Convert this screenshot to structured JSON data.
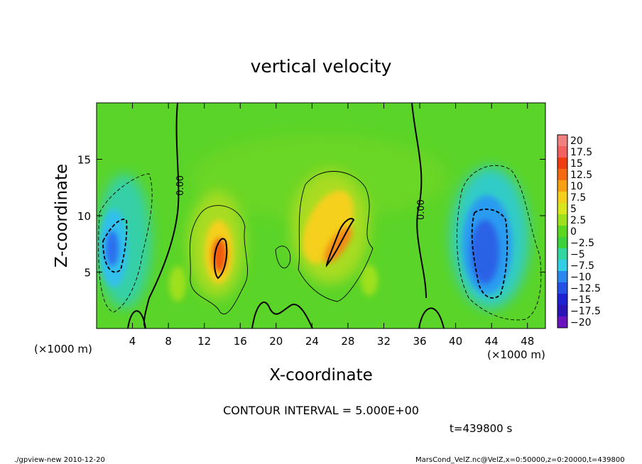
{
  "chart_data": {
    "type": "heatmap",
    "title": "vertical velocity",
    "xlabel": "X-coordinate",
    "ylabel": "Z-coordinate",
    "x_unit": "(×1000 m)",
    "z_unit": "(×1000 m)",
    "xlim": [
      0,
      50
    ],
    "zlim": [
      0,
      20
    ],
    "x_ticks": [
      "4",
      "8",
      "12",
      "16",
      "20",
      "24",
      "28",
      "32",
      "36",
      "40",
      "44",
      "48"
    ],
    "z_ticks": [
      "5",
      "10",
      "15"
    ],
    "colorbar": {
      "labels": [
        "20",
        "17.5",
        "15",
        "12.5",
        "10",
        "7.5",
        "5",
        "2.5",
        "0",
        "−2.5",
        "−5",
        "−7.5",
        "−10",
        "−12.5",
        "−15",
        "−17.5",
        "−20"
      ],
      "colors": [
        "#f08080",
        "#f26060",
        "#f03c10",
        "#f56a10",
        "#f7a014",
        "#f5d01a",
        "#d8e61c",
        "#9ee01c",
        "#5cd61e",
        "#3cd23c",
        "#32d6a0",
        "#30cfe6",
        "#2a88f0",
        "#2450e6",
        "#1e22d0",
        "#2a14b8",
        "#6a14c0"
      ]
    },
    "contour_labels": [
      "0.00",
      "0.00"
    ],
    "contour_interval_text": "CONTOUR INTERVAL = 5.000E+00",
    "time_text": "t=439800  s",
    "features": [
      {
        "kind": "updraft",
        "x": 13.5,
        "z": 7,
        "peak": 12.5
      },
      {
        "kind": "updraft",
        "x": 26.5,
        "z": 9,
        "peak": 10
      },
      {
        "kind": "downdraft",
        "x": 2.5,
        "z": 7,
        "peak": -10
      },
      {
        "kind": "downdraft",
        "x": 44,
        "z": 7,
        "peak": -12.5
      }
    ]
  },
  "footer": {
    "left": "./gpview-new   2010-12-20",
    "right": "MarsCond_VelZ.nc@VelZ,x=0:50000,z=0:20000,t=439800"
  }
}
